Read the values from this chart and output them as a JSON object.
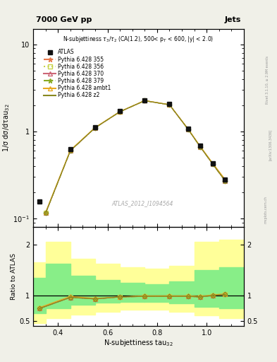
{
  "title_top": "7000 GeV pp",
  "title_right": "Jets",
  "subtitle": "N-subjettiness $\\tau_3/\\tau_2$ (CA(1.2), 500< p$_T$ < 600, |y| < 2.0)",
  "watermark": "ATLAS_2012_I1094564",
  "ylabel_main": "1/σ dσ/dτau$_{32}$",
  "ylabel_ratio": "Ratio to ATLAS",
  "xlabel": "N-subjettiness tau$_{32}$",
  "rivet_label": "Rivet 3.1.10, ≥ 2.9M events",
  "arxiv_label": "[arXiv:1306.3436]",
  "mcplots_label": "mcplots.cern.ch",
  "atlas_x": [
    0.325,
    0.45,
    0.55,
    0.65,
    0.75,
    0.85,
    0.925,
    0.975,
    1.025,
    1.075
  ],
  "atlas_y": [
    0.155,
    0.62,
    1.12,
    1.7,
    2.28,
    2.05,
    1.08,
    0.68,
    0.43,
    0.28
  ],
  "mc_x": [
    0.35,
    0.45,
    0.55,
    0.65,
    0.75,
    0.85,
    0.925,
    0.975,
    1.025,
    1.075
  ],
  "mc_355_y": [
    0.115,
    0.6,
    1.1,
    1.68,
    2.25,
    2.02,
    1.06,
    0.66,
    0.42,
    0.27
  ],
  "mc_356_y": [
    0.115,
    0.6,
    1.1,
    1.68,
    2.25,
    2.02,
    1.06,
    0.66,
    0.42,
    0.27
  ],
  "mc_370_y": [
    0.115,
    0.6,
    1.1,
    1.68,
    2.25,
    2.02,
    1.06,
    0.66,
    0.42,
    0.27
  ],
  "mc_379_y": [
    0.115,
    0.6,
    1.1,
    1.68,
    2.25,
    2.02,
    1.06,
    0.66,
    0.42,
    0.27
  ],
  "mc_ambt1_y": [
    0.118,
    0.61,
    1.11,
    1.69,
    2.26,
    2.03,
    1.07,
    0.67,
    0.43,
    0.28
  ],
  "mc_z2_y": [
    0.115,
    0.6,
    1.1,
    1.68,
    2.25,
    2.02,
    1.06,
    0.66,
    0.42,
    0.27
  ],
  "color_355": "#e8784a",
  "color_356": "#c8d44a",
  "color_370": "#cc6677",
  "color_379": "#88aa22",
  "color_ambt1": "#e8a820",
  "color_z2": "#888820",
  "color_atlas": "#111111",
  "xlim": [
    0.3,
    1.15
  ],
  "xticks": [
    0.4,
    0.6,
    0.8,
    1.0
  ],
  "ylim_main": [
    0.08,
    15
  ],
  "ylim_ratio": [
    0.4,
    2.35
  ],
  "bg_color": "#ffffff",
  "fig_bg": "#f0f0e8",
  "ratio_bin_edges": [
    0.3,
    0.35,
    0.45,
    0.55,
    0.65,
    0.75,
    0.85,
    0.95,
    1.05,
    1.15
  ],
  "yellow_lo": [
    0.45,
    0.55,
    0.62,
    0.68,
    0.72,
    0.72,
    0.68,
    0.6,
    0.55
  ],
  "yellow_hi": [
    1.65,
    2.05,
    1.72,
    1.62,
    1.55,
    1.52,
    1.58,
    2.05,
    2.1
  ],
  "green_lo": [
    0.65,
    0.75,
    0.82,
    0.86,
    0.87,
    0.87,
    0.84,
    0.78,
    0.75
  ],
  "green_hi": [
    1.35,
    1.62,
    1.38,
    1.3,
    1.25,
    1.22,
    1.28,
    1.5,
    1.55
  ],
  "ratio_x": [
    0.325,
    0.45,
    0.55,
    0.65,
    0.75,
    0.85,
    0.925,
    0.975,
    1.025,
    1.075
  ],
  "ratio_355": [
    0.74,
    0.96,
    0.93,
    0.97,
    0.98,
    0.98,
    0.98,
    0.97,
    1.0,
    1.02
  ],
  "ratio_356": [
    0.74,
    0.96,
    0.93,
    0.97,
    0.98,
    0.98,
    0.98,
    0.97,
    1.0,
    1.02
  ],
  "ratio_370": [
    0.74,
    0.96,
    0.93,
    0.97,
    0.98,
    0.98,
    0.98,
    0.97,
    1.0,
    1.02
  ],
  "ratio_379": [
    0.74,
    0.96,
    0.93,
    0.97,
    0.98,
    0.98,
    0.98,
    0.97,
    1.0,
    1.02
  ],
  "ratio_ambt1": [
    0.76,
    0.98,
    0.94,
    0.97,
    0.99,
    0.99,
    0.99,
    0.98,
    1.01,
    1.03
  ],
  "ratio_z2": [
    0.74,
    0.96,
    0.93,
    0.97,
    0.98,
    0.98,
    0.98,
    0.97,
    1.0,
    1.02
  ]
}
